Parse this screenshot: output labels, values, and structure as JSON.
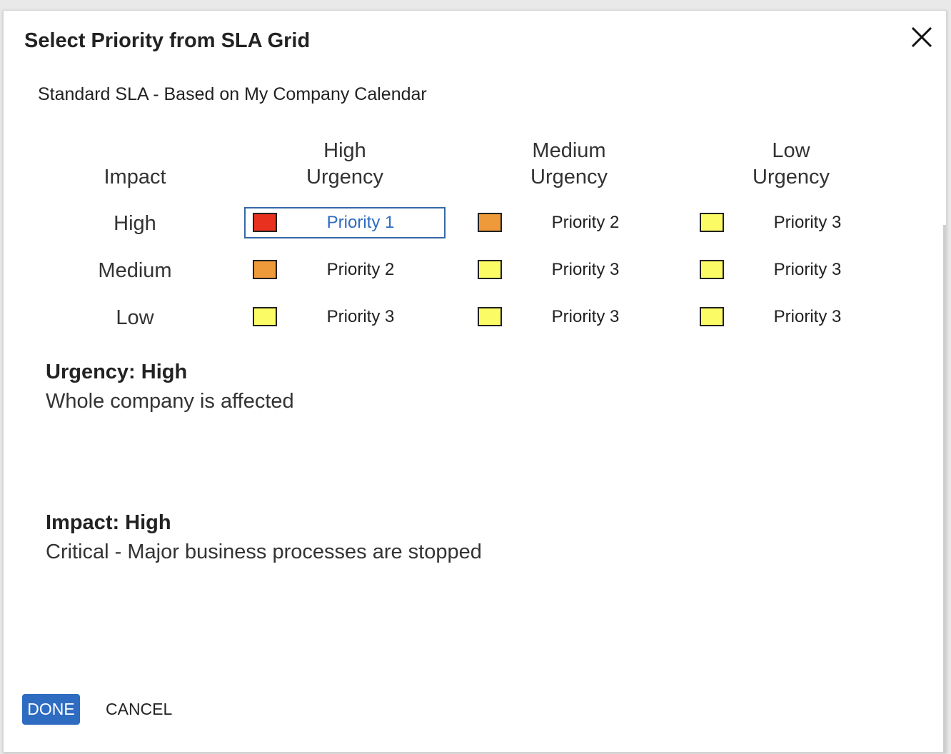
{
  "dialog": {
    "title": "Select Priority from SLA Grid",
    "close_icon": "close-icon",
    "subtitle": "Standard SLA - Based on My Company Calendar"
  },
  "grid": {
    "impact_header": "Impact",
    "urgency_headers": [
      {
        "line1": "High",
        "line2": "Urgency"
      },
      {
        "line1": "Medium",
        "line2": "Urgency"
      },
      {
        "line1": "Low",
        "line2": "Urgency"
      }
    ],
    "rows": [
      {
        "impact": "High",
        "cells": [
          {
            "label": "Priority 1",
            "color": "#e8321f",
            "selected": true
          },
          {
            "label": "Priority 2",
            "color": "#ee9a3a",
            "selected": false
          },
          {
            "label": "Priority 3",
            "color": "#fbfb66",
            "selected": false
          }
        ]
      },
      {
        "impact": "Medium",
        "cells": [
          {
            "label": "Priority 2",
            "color": "#ee9a3a",
            "selected": false
          },
          {
            "label": "Priority 3",
            "color": "#fbfb66",
            "selected": false
          },
          {
            "label": "Priority 3",
            "color": "#fbfb66",
            "selected": false
          }
        ]
      },
      {
        "impact": "Low",
        "cells": [
          {
            "label": "Priority 3",
            "color": "#fbfb66",
            "selected": false
          },
          {
            "label": "Priority 3",
            "color": "#fbfb66",
            "selected": false
          },
          {
            "label": "Priority 3",
            "color": "#fbfb66",
            "selected": false
          }
        ]
      }
    ]
  },
  "details": {
    "urgency_title": "Urgency: High",
    "urgency_text": "Whole company is affected",
    "impact_title": "Impact: High",
    "impact_text": "Critical - Major business processes are stopped"
  },
  "footer": {
    "done_label": "DONE",
    "cancel_label": "CANCEL"
  },
  "colors": {
    "accent": "#2e6cc2",
    "selected_border": "#3567a8"
  }
}
